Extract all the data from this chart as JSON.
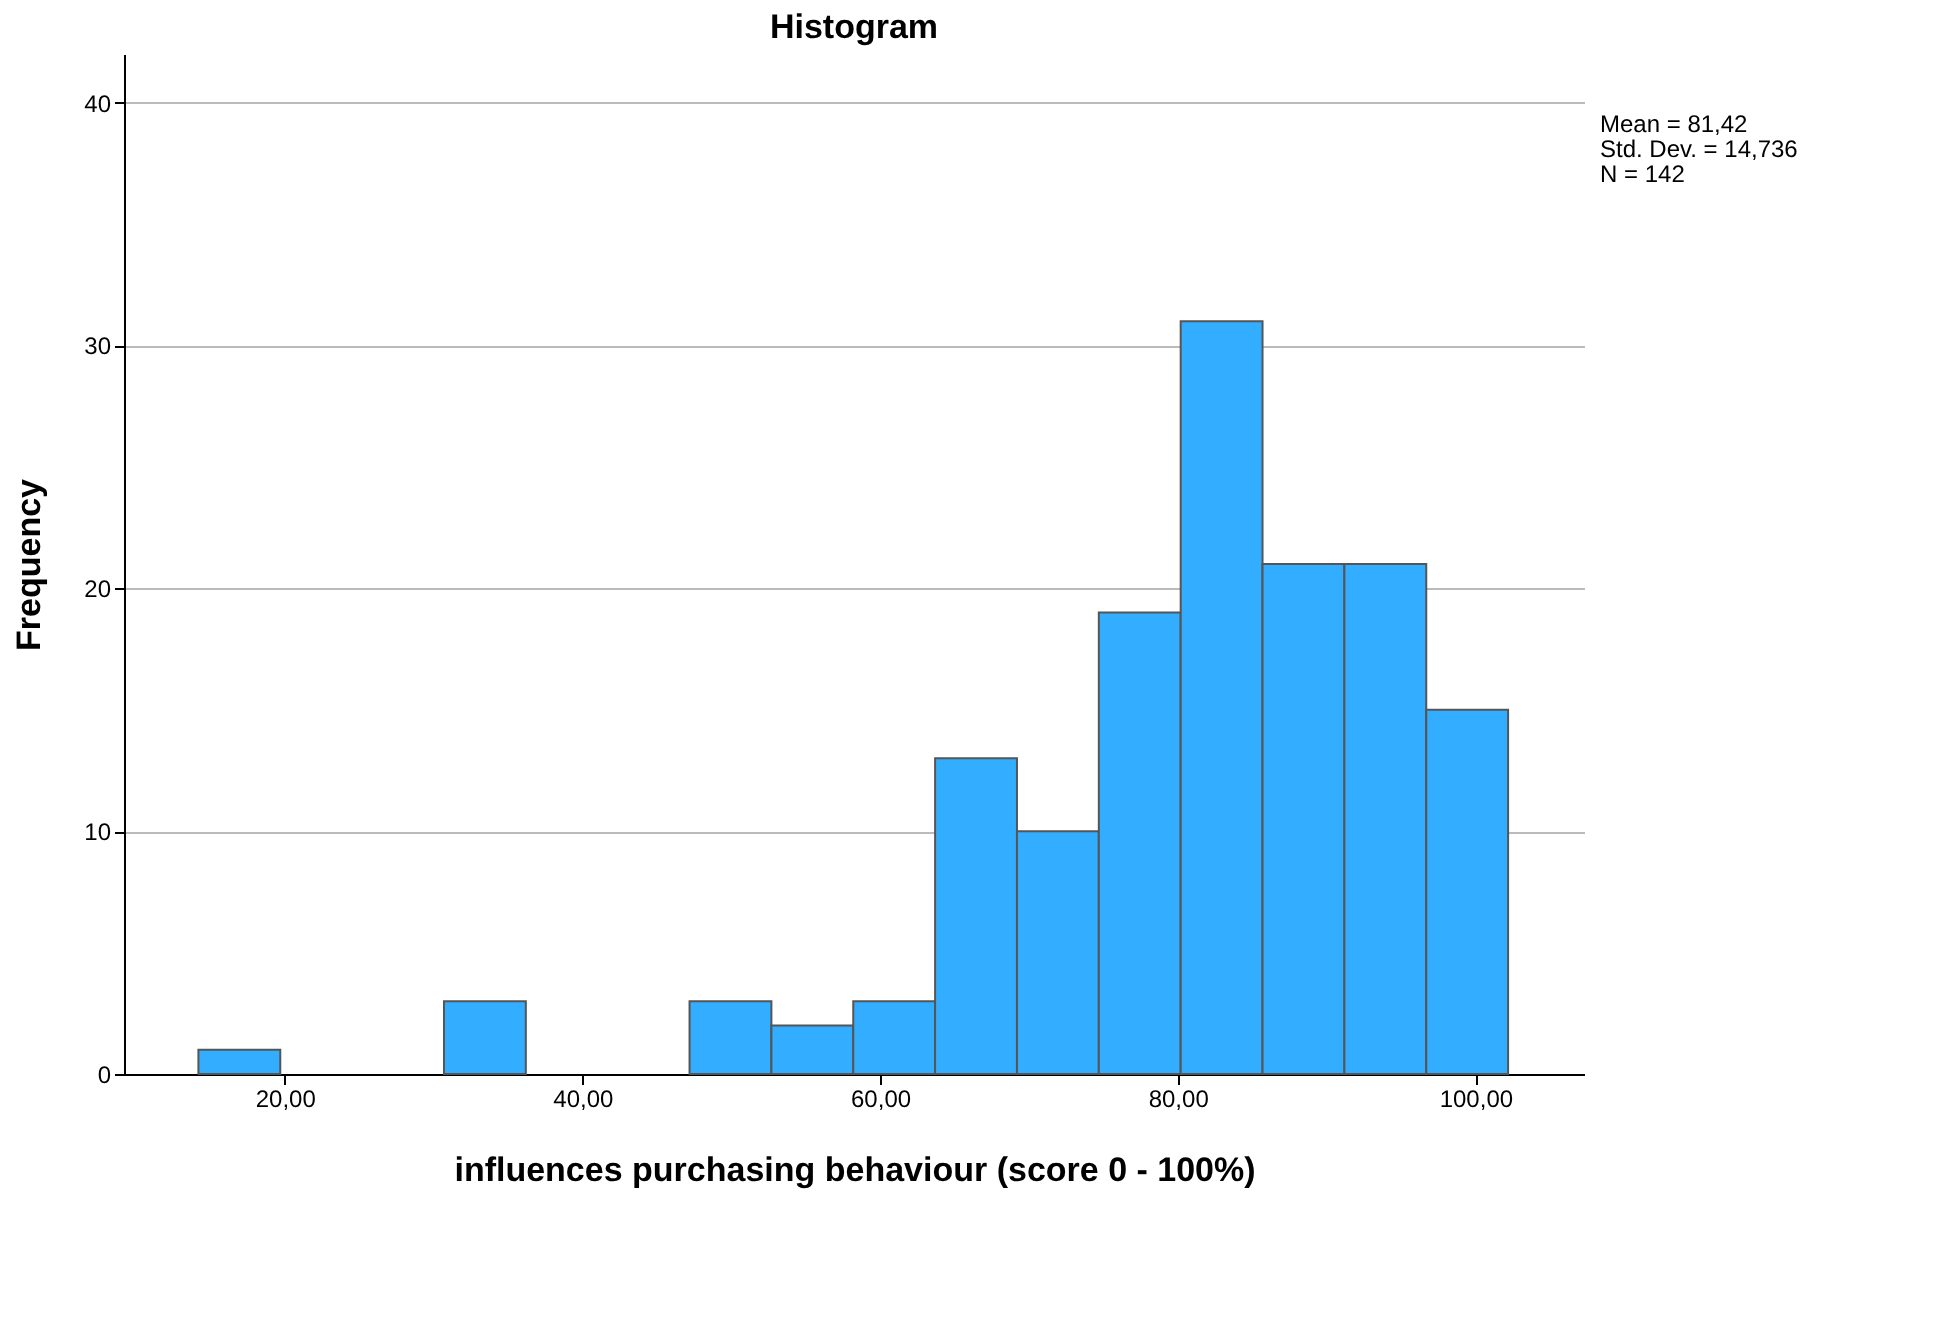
{
  "chart_data": {
    "type": "histogram",
    "title": "Histogram",
    "xlabel": "influences purchasing behaviour (score 0 - 100%)",
    "ylabel": "Frequency",
    "bins": [
      14.2,
      19.7,
      25.2,
      30.7,
      36.2,
      41.7,
      47.2,
      52.7,
      58.2,
      63.7,
      69.2,
      74.7,
      80.2,
      85.7,
      91.2,
      96.7,
      102.2
    ],
    "values": [
      1,
      0,
      0,
      3,
      0,
      0,
      3,
      2,
      3,
      13,
      10,
      19,
      31,
      21,
      21,
      15
    ],
    "color": "#33adff",
    "xlim": [
      9.2,
      107.3
    ],
    "ylim": [
      0,
      42
    ],
    "xticks": [
      {
        "value": 20,
        "label": "20,00"
      },
      {
        "value": 40,
        "label": "40,00"
      },
      {
        "value": 60,
        "label": "60,00"
      },
      {
        "value": 80,
        "label": "80,00"
      },
      {
        "value": 100,
        "label": "100,00"
      }
    ],
    "yticks": [
      0,
      10,
      20,
      30,
      40
    ],
    "grid": "y",
    "annotations": [
      "Mean = 81,42",
      "Std. Dev. = 14,736",
      "N = 142"
    ]
  }
}
